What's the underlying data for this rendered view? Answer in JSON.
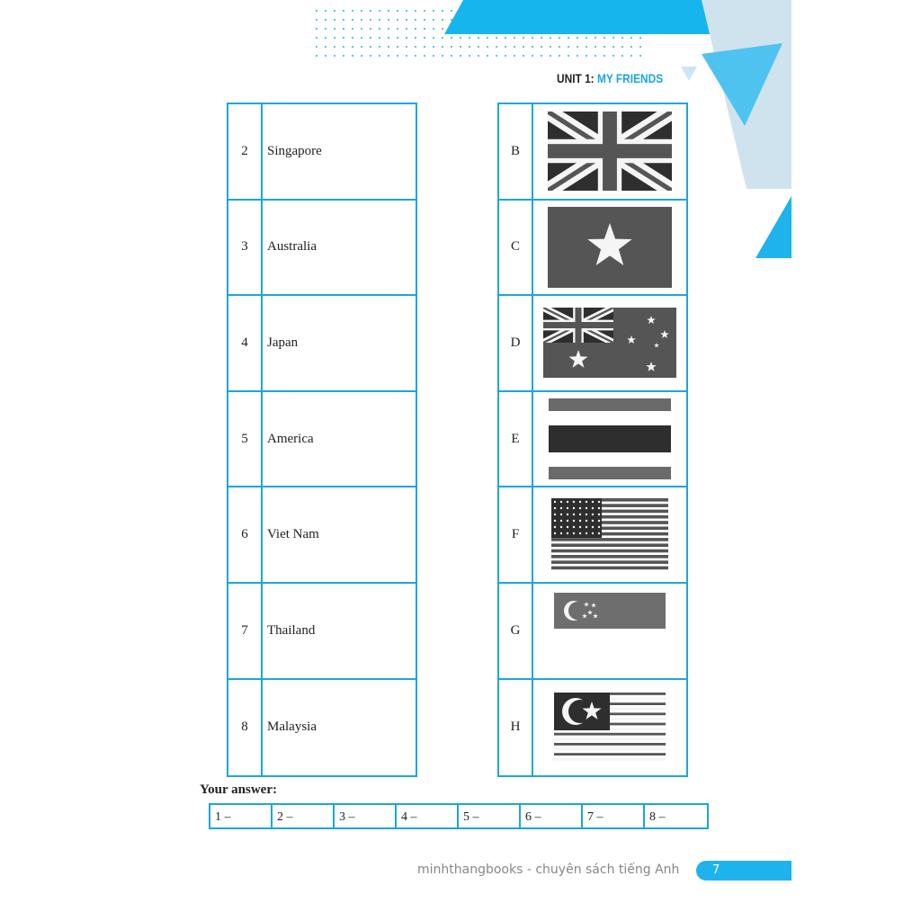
{
  "header": {
    "unit_prefix": "UNIT 1:",
    "unit_title": "MY FRIENDS",
    "accent": "#1ba6dd"
  },
  "countries": [
    {
      "num": "2",
      "name": "Singapore"
    },
    {
      "num": "3",
      "name": "Australia"
    },
    {
      "num": "4",
      "name": "Japan"
    },
    {
      "num": "5",
      "name": "America"
    },
    {
      "num": "6",
      "name": "Viet Nam"
    },
    {
      "num": "7",
      "name": "Thailand"
    },
    {
      "num": "8",
      "name": "Malaysia"
    }
  ],
  "flags": [
    {
      "letter": "B",
      "icon": "uk-flag"
    },
    {
      "letter": "C",
      "icon": "vietnam-flag"
    },
    {
      "letter": "D",
      "icon": "australia-flag"
    },
    {
      "letter": "E",
      "icon": "thailand-flag"
    },
    {
      "letter": "F",
      "icon": "usa-flag"
    },
    {
      "letter": "G",
      "icon": "singapore-flag"
    },
    {
      "letter": "H",
      "icon": "malaysia-flag"
    }
  ],
  "answer": {
    "label": "Your answer:",
    "cells": [
      "1 –",
      "2 –",
      "3 –",
      "4 –",
      "5 –",
      "6 –",
      "7 –",
      "8 –"
    ]
  },
  "footer": {
    "text": "minhthangbooks - chuyên sách tiếng Anh",
    "page": "7"
  }
}
